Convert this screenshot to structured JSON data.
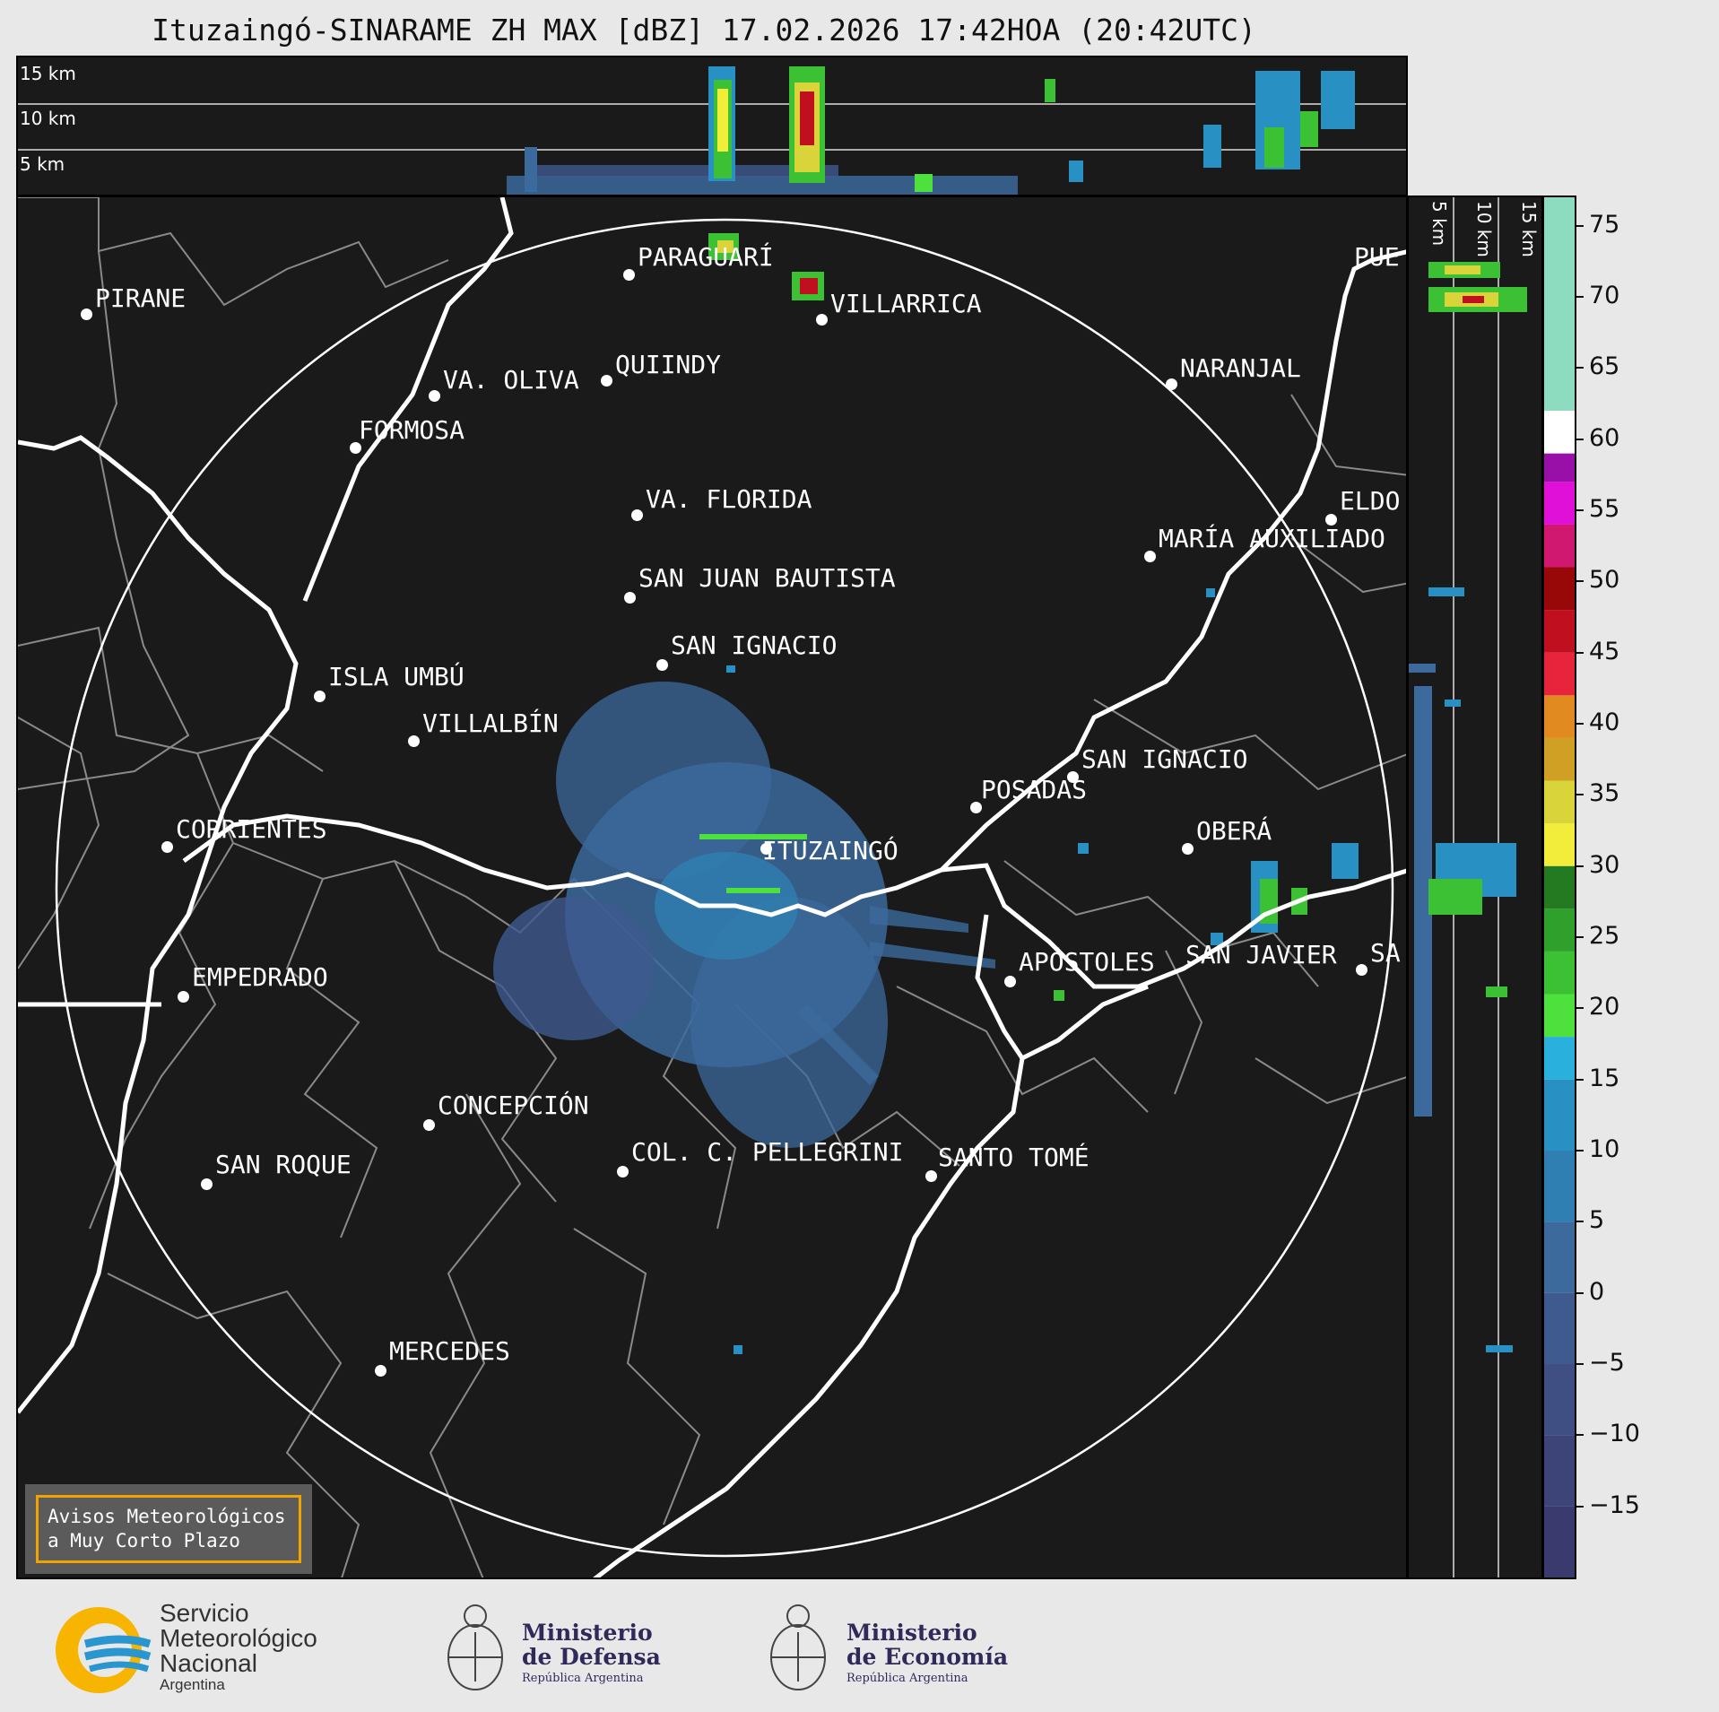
{
  "title": "Ituzaingó-SINARAME ZH MAX [dBZ] 17.02.2026 17:42HOA (20:42UTC)",
  "top_profile": {
    "levels": [
      "15 km",
      "10 km",
      "5 km"
    ]
  },
  "side_profile": {
    "levels": [
      "5 km",
      "10 km",
      "15 km"
    ]
  },
  "cities": [
    {
      "name": "PIRANE"
    },
    {
      "name": "PARAGUARÍ"
    },
    {
      "name": "VILLARRICA"
    },
    {
      "name": "QUIINDY"
    },
    {
      "name": "VA. OLIVA"
    },
    {
      "name": "FORMOSA"
    },
    {
      "name": "NARANJAL"
    },
    {
      "name": "PUE"
    },
    {
      "name": "VA. FLORIDA"
    },
    {
      "name": "ELDO"
    },
    {
      "name": "MARÍA AUXILIADO"
    },
    {
      "name": "SAN JUAN BAUTISTA"
    },
    {
      "name": "SAN IGNACIO"
    },
    {
      "name": "ISLA UMBÚ"
    },
    {
      "name": "VILLALBÍN"
    },
    {
      "name": "SAN IGNACIO"
    },
    {
      "name": "POSADAS"
    },
    {
      "name": "CORRIENTES"
    },
    {
      "name": "ITUZAINGÓ"
    },
    {
      "name": "OBERÁ"
    },
    {
      "name": "EMPEDRADO"
    },
    {
      "name": "APÓSTOLES"
    },
    {
      "name": "SAN JAVIER"
    },
    {
      "name": "SA"
    },
    {
      "name": "CONCEPCIÓN"
    },
    {
      "name": "SAN ROQUE"
    },
    {
      "name": "COL. C. PELLEGRINI"
    },
    {
      "name": "SANTO TOMÉ"
    },
    {
      "name": "MERCEDES"
    }
  ],
  "colorbar": {
    "unit": "dBZ",
    "ticks": [
      "75",
      "70",
      "65",
      "60",
      "55",
      "50",
      "45",
      "40",
      "35",
      "30",
      "25",
      "20",
      "15",
      "10",
      "5",
      "0",
      "−5",
      "−10",
      "−15"
    ],
    "range": [
      -20,
      77
    ],
    "segments": [
      {
        "from": -20,
        "to": -15,
        "color": "#3a3a6e"
      },
      {
        "from": -15,
        "to": -10,
        "color": "#3d4478"
      },
      {
        "from": -10,
        "to": -5,
        "color": "#3f4f84"
      },
      {
        "from": -5,
        "to": 0,
        "color": "#3f5a8e"
      },
      {
        "from": 0,
        "to": 5,
        "color": "#3c6a9c"
      },
      {
        "from": 5,
        "to": 10,
        "color": "#2f7fb2"
      },
      {
        "from": 10,
        "to": 15,
        "color": "#2990c4"
      },
      {
        "from": 15,
        "to": 18,
        "color": "#2ab0dc"
      },
      {
        "from": 18,
        "to": 21,
        "color": "#4ee03c"
      },
      {
        "from": 21,
        "to": 24,
        "color": "#3cc034"
      },
      {
        "from": 24,
        "to": 27,
        "color": "#2fa02c"
      },
      {
        "from": 27,
        "to": 30,
        "color": "#247a20"
      },
      {
        "from": 30,
        "to": 33,
        "color": "#f2ec3a"
      },
      {
        "from": 33,
        "to": 36,
        "color": "#d8d43a"
      },
      {
        "from": 36,
        "to": 39,
        "color": "#d0a024"
      },
      {
        "from": 39,
        "to": 42,
        "color": "#e08a20"
      },
      {
        "from": 42,
        "to": 45,
        "color": "#e8243c"
      },
      {
        "from": 45,
        "to": 48,
        "color": "#c01020"
      },
      {
        "from": 48,
        "to": 51,
        "color": "#980808"
      },
      {
        "from": 51,
        "to": 54,
        "color": "#d01870"
      },
      {
        "from": 54,
        "to": 57,
        "color": "#e010d8"
      },
      {
        "from": 57,
        "to": 59,
        "color": "#9810a8"
      },
      {
        "from": 59,
        "to": 62,
        "color": "#ffffff"
      },
      {
        "from": 62,
        "to": 77,
        "color": "#8edcc0"
      }
    ]
  },
  "colors": {
    "background": "#1a1a1a",
    "page": "#e8e8e8",
    "river": "#ffffff",
    "boundary": "#8a8a8a",
    "alert_border": "#f0a400"
  },
  "alert": {
    "line1": "Avisos Meteorológicos",
    "line2": "a Muy Corto Plazo"
  },
  "logos": {
    "smn": {
      "l1": "Servicio",
      "l2": "Meteorológico",
      "l3": "Nacional",
      "l4": "Argentina"
    },
    "defensa": {
      "l1": "Ministerio",
      "l2": "de Defensa",
      "l3": "República Argentina"
    },
    "economia": {
      "l1": "Ministerio",
      "l2": "de Economía",
      "l3": "República Argentina"
    }
  }
}
